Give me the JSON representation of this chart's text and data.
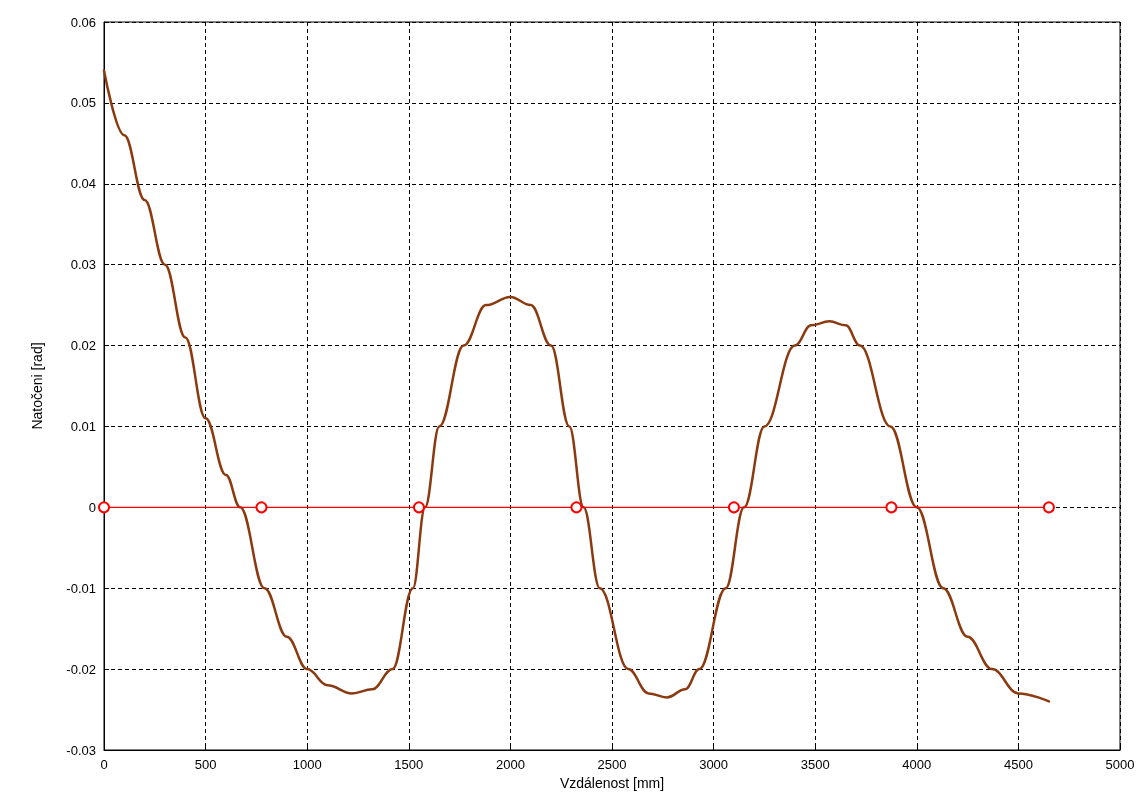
{
  "chart_data": {
    "type": "line",
    "xlabel": "Vzdálenost [mm]",
    "ylabel": "Natočeni [rad]",
    "xlim": [
      0,
      5000
    ],
    "xticks": [
      0,
      500,
      1000,
      1500,
      2000,
      2500,
      3000,
      3500,
      4000,
      4500,
      5000
    ],
    "ylim": [
      -0.03,
      0.06
    ],
    "yticks": [
      -0.03,
      -0.02,
      -0.01,
      0,
      0.01,
      0.02,
      0.03,
      0.04,
      0.05,
      0.06
    ],
    "grid": true,
    "series": [
      {
        "color": "#8b3a0f",
        "marker": "none",
        "x": [
          0,
          100,
          200,
          300,
          400,
          500,
          600,
          670,
          790,
          900,
          1000,
          1100,
          1220,
          1320,
          1420,
          1520,
          1580,
          1650,
          1770,
          1880,
          2000,
          2100,
          2200,
          2290,
          2360,
          2440,
          2580,
          2680,
          2770,
          2860,
          2930,
          3060,
          3150,
          3250,
          3400,
          3480,
          3570,
          3650,
          3720,
          3870,
          4000,
          4130,
          4250,
          4370,
          4500,
          4650
        ],
        "values": [
          0.054,
          0.046,
          0.038,
          0.03,
          0.021,
          0.011,
          0.004,
          0,
          -0.01,
          -0.016,
          -0.02,
          -0.022,
          -0.023,
          -0.0225,
          -0.02,
          -0.01,
          0,
          0.01,
          0.02,
          0.025,
          0.026,
          0.025,
          0.02,
          0.01,
          0,
          -0.01,
          -0.02,
          -0.023,
          -0.0235,
          -0.0225,
          -0.02,
          -0.01,
          0,
          0.01,
          0.02,
          0.0225,
          0.023,
          0.0225,
          0.02,
          0.01,
          0,
          -0.01,
          -0.016,
          -0.02,
          -0.023,
          -0.024
        ]
      },
      {
        "color": "#ff0000",
        "marker": "circle",
        "x": [
          0,
          775,
          1550,
          2325,
          3100,
          3875,
          4650
        ],
        "values": [
          0,
          0,
          0,
          0,
          0,
          0,
          0
        ]
      }
    ]
  }
}
